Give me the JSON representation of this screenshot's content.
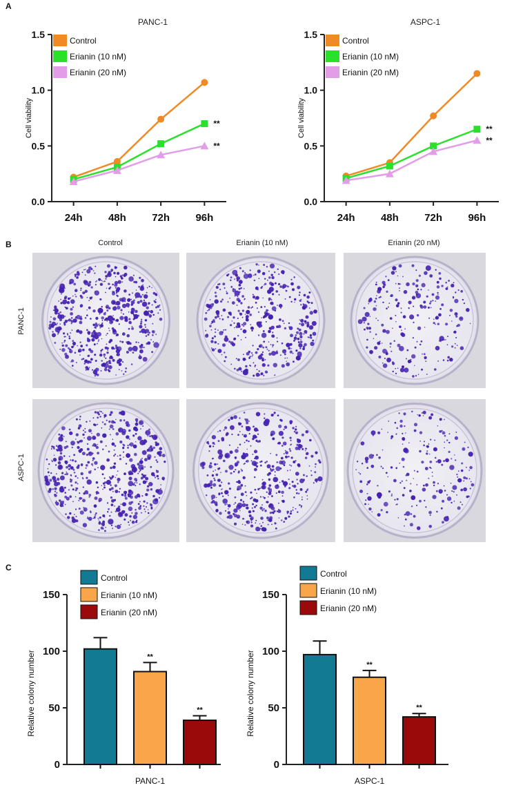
{
  "panel_labels": {
    "a": "A",
    "b": "B",
    "c": "C"
  },
  "colors": {
    "control_line": "#F08A24",
    "erianin10_line": "#2BE02B",
    "erianin20_line": "#E29CE8",
    "control_bar": "#137A93",
    "erianin10_bar": "#F9A54A",
    "erianin20_bar": "#9B0A0A",
    "dish_stain": "#4422B0",
    "dish_bg": "#ECEAF1"
  },
  "panel_b": {
    "columns": [
      "Control",
      "Erianin (10 nM)",
      "Erianin (20 nM)"
    ],
    "rows": [
      "PANC-1",
      "ASPC-1"
    ]
  },
  "chart_data": [
    {
      "type": "line",
      "title": "PANC-1",
      "ylabel": "Cell viability",
      "xlabel": "",
      "categories": [
        "24h",
        "48h",
        "72h",
        "96h"
      ],
      "yticks": [
        "0.0",
        "0.5",
        "1.0",
        "1.5"
      ],
      "ylim": [
        0,
        1.5
      ],
      "series": [
        {
          "name": "Control",
          "values": [
            0.22,
            0.36,
            0.74,
            1.07
          ],
          "marker": "circle",
          "sig": ""
        },
        {
          "name": "Erianin (10 nM)",
          "values": [
            0.2,
            0.31,
            0.52,
            0.7
          ],
          "marker": "square",
          "sig": "**"
        },
        {
          "name": "Erianin (20 nM)",
          "values": [
            0.18,
            0.28,
            0.42,
            0.5
          ],
          "marker": "triangle",
          "sig": "**"
        }
      ]
    },
    {
      "type": "line",
      "title": "ASPC-1",
      "ylabel": "Cell viability",
      "xlabel": "",
      "categories": [
        "24h",
        "48h",
        "72h",
        "96h"
      ],
      "yticks": [
        "0.0",
        "0.5",
        "1.0",
        "1.5"
      ],
      "ylim": [
        0,
        1.5
      ],
      "series": [
        {
          "name": "Control",
          "values": [
            0.23,
            0.35,
            0.77,
            1.15
          ],
          "marker": "circle",
          "sig": ""
        },
        {
          "name": "Erianin (10 nM)",
          "values": [
            0.21,
            0.32,
            0.5,
            0.65
          ],
          "marker": "square",
          "sig": "**"
        },
        {
          "name": "Erianin (20 nM)",
          "values": [
            0.19,
            0.25,
            0.45,
            0.55
          ],
          "marker": "triangle",
          "sig": "**"
        }
      ]
    },
    {
      "type": "bar",
      "title": "",
      "ylabel": "Relative colony number",
      "xlabel": "PANC-1",
      "categories": [
        "Control",
        "Erianin (10 nM)",
        "Erianin (20 nM)"
      ],
      "values": [
        102,
        82,
        39
      ],
      "errors": [
        10,
        8,
        4
      ],
      "sig": [
        "",
        "**",
        "**"
      ],
      "yticks": [
        "0",
        "50",
        "100",
        "150"
      ],
      "ylim": [
        0,
        150
      ]
    },
    {
      "type": "bar",
      "title": "",
      "ylabel": "Relative colony number",
      "xlabel": "ASPC-1",
      "categories": [
        "Control",
        "Erianin (10 nM)",
        "Erianin (20 nM)"
      ],
      "values": [
        97,
        77,
        42
      ],
      "errors": [
        12,
        6,
        3
      ],
      "sig": [
        "",
        "**",
        "**"
      ],
      "yticks": [
        "0",
        "50",
        "100",
        "150"
      ],
      "ylim": [
        0,
        150
      ]
    }
  ]
}
